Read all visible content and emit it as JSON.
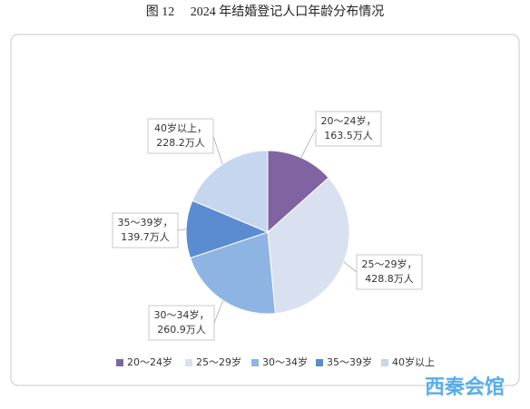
{
  "chart_data": {
    "type": "pie",
    "title": "图 12　 2024 年结婚登记人口年龄分布情况",
    "categories": [
      "20～24岁",
      "25～29岁",
      "30～34岁",
      "35～39岁",
      "40岁以上"
    ],
    "label_names": [
      "20～24岁，",
      "25～29岁，",
      "30～34岁，",
      "35～39岁，",
      "40岁以上，"
    ],
    "values": [
      163.5,
      428.8,
      260.9,
      139.7,
      228.2
    ],
    "value_labels": [
      "163.5万人",
      "428.8万人",
      "260.9万人",
      "139.7万人",
      "228.2万人"
    ],
    "colors": [
      "#8064a2",
      "#d9e1f0",
      "#8eb4e3",
      "#5b8bd0",
      "#c6d6ee"
    ],
    "legend": "bottom",
    "watermark": "西秦会馆"
  }
}
